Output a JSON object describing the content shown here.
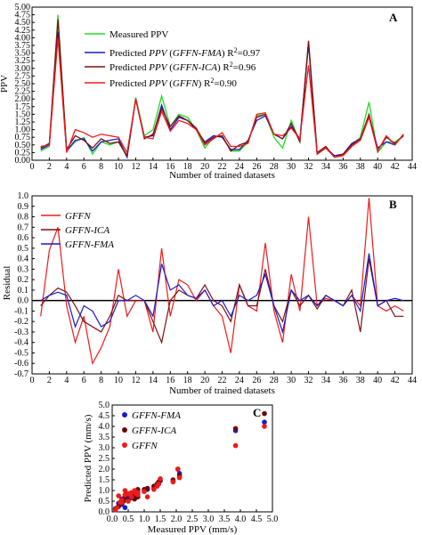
{
  "chart_data": [
    {
      "type": "line",
      "panel_label": "A",
      "xlabel": "Number of trained datasets",
      "ylabel": "PPV",
      "xlim": [
        0,
        44
      ],
      "ylim": [
        0,
        5
      ],
      "x_ticks": [
        "0",
        "2",
        "4",
        "6",
        "8",
        "10",
        "12",
        "14",
        "16",
        "18",
        "20",
        "22",
        "24",
        "26",
        "28",
        "30",
        "32",
        "34",
        "36",
        "38",
        "40",
        "42",
        "44"
      ],
      "y_ticks": [
        "0.00",
        "0.25",
        "0.50",
        "0.75",
        "1.00",
        "1.25",
        "1.50",
        "1.75",
        "2.00",
        "2.25",
        "2.50",
        "2.75",
        "3.00",
        "3.25",
        "3.50",
        "3.75",
        "4.00",
        "4.25",
        "4.50",
        "4.75",
        "5.00"
      ],
      "legend_position": "top",
      "x": [
        1,
        2,
        3,
        4,
        5,
        6,
        7,
        8,
        9,
        10,
        11,
        12,
        13,
        14,
        15,
        16,
        17,
        18,
        19,
        20,
        21,
        22,
        23,
        24,
        25,
        26,
        27,
        28,
        29,
        30,
        31,
        32,
        33,
        34,
        35,
        36,
        37,
        38,
        39,
        40,
        41,
        42,
        43
      ],
      "series": [
        {
          "name": "Measured PPV",
          "color": "#22dd22",
          "values": [
            0.3,
            0.45,
            4.75,
            0.3,
            0.6,
            0.75,
            0.2,
            0.6,
            0.5,
            0.6,
            0.1,
            2.05,
            0.8,
            1.0,
            2.1,
            1.1,
            1.5,
            1.4,
            1.0,
            0.4,
            0.75,
            0.8,
            0.3,
            0.3,
            0.6,
            1.45,
            1.5,
            0.75,
            0.4,
            1.3,
            0.6,
            3.85,
            0.2,
            0.4,
            0.1,
            0.15,
            0.5,
            0.75,
            1.9,
            0.25,
            0.6,
            0.6,
            0.8
          ]
        },
        {
          "name_prefix": "Predicted ",
          "name_ppv": "PPV",
          "name_model": "GFFN-FMA",
          "name_suffix": "R",
          "name_exp": "2",
          "name_value": "=0.97",
          "color": "#1a1acc",
          "values": [
            0.35,
            0.5,
            4.2,
            0.3,
            0.65,
            0.7,
            0.3,
            0.6,
            0.65,
            0.7,
            0.1,
            2.0,
            0.75,
            0.8,
            1.8,
            1.0,
            1.4,
            1.3,
            1.0,
            0.6,
            0.8,
            0.75,
            0.35,
            0.35,
            0.65,
            1.3,
            1.45,
            0.85,
            0.7,
            1.1,
            0.7,
            3.8,
            0.2,
            0.4,
            0.15,
            0.2,
            0.55,
            0.7,
            1.45,
            0.4,
            0.6,
            0.5,
            0.85
          ]
        },
        {
          "name_prefix": "Predicted ",
          "name_ppv": "PPV",
          "name_model": "GFFN-ICA",
          "name_suffix": "R",
          "name_exp": "2",
          "name_value": "=0.96",
          "color": "#7a1010",
          "values": [
            0.4,
            0.55,
            4.6,
            0.35,
            0.8,
            0.65,
            0.4,
            0.7,
            0.55,
            0.6,
            0.15,
            2.0,
            0.7,
            0.85,
            1.7,
            1.1,
            1.45,
            1.3,
            1.05,
            0.55,
            0.75,
            0.8,
            0.3,
            0.5,
            0.6,
            1.4,
            1.5,
            0.85,
            0.7,
            1.2,
            0.6,
            3.9,
            0.25,
            0.45,
            0.1,
            0.2,
            0.5,
            0.7,
            1.5,
            0.3,
            0.75,
            0.55,
            0.8
          ]
        },
        {
          "name_prefix": "Predicted ",
          "name_ppv": "PPV",
          "name_model": "GFFN",
          "name_suffix": "R",
          "name_exp": "2",
          "name_value": "=0.90",
          "color": "#ee1a1a",
          "values": [
            0.45,
            0.5,
            4.0,
            0.25,
            1.0,
            0.9,
            0.75,
            0.85,
            0.8,
            0.75,
            0.25,
            2.0,
            0.75,
            0.7,
            1.6,
            0.95,
            1.3,
            1.2,
            1.0,
            0.5,
            0.7,
            0.9,
            0.45,
            0.45,
            0.55,
            1.5,
            1.55,
            0.85,
            0.8,
            1.05,
            0.7,
            3.1,
            0.2,
            0.4,
            0.1,
            0.15,
            0.45,
            0.65,
            1.4,
            0.3,
            0.8,
            0.5,
            0.85
          ]
        }
      ]
    },
    {
      "type": "line",
      "panel_label": "B",
      "xlabel": "Number of trained datasets",
      "ylabel": "Residual",
      "xlim": [
        0,
        44
      ],
      "ylim": [
        -0.7,
        1.0
      ],
      "x_ticks": [
        "0",
        "2",
        "4",
        "6",
        "8",
        "10",
        "12",
        "14",
        "16",
        "18",
        "20",
        "22",
        "24",
        "26",
        "28",
        "30",
        "32",
        "34",
        "36",
        "38",
        "40",
        "42",
        "44"
      ],
      "y_ticks": [
        "-0.7",
        "-0.6",
        "-0.5",
        "-0.4",
        "-0.3",
        "-0.2",
        "-0.1",
        "0.0",
        "0.1",
        "0.2",
        "0.3",
        "0.4",
        "0.5",
        "0.6",
        "0.7",
        "0.8",
        "0.9",
        "1.0"
      ],
      "legend_position": "top-left",
      "x": [
        1,
        2,
        3,
        4,
        5,
        6,
        7,
        8,
        9,
        10,
        11,
        12,
        13,
        14,
        15,
        16,
        17,
        18,
        19,
        20,
        21,
        22,
        23,
        24,
        25,
        26,
        27,
        28,
        29,
        30,
        31,
        32,
        33,
        34,
        35,
        36,
        37,
        38,
        39,
        40,
        41,
        42,
        43
      ],
      "series": [
        {
          "name": "GFFN",
          "color": "#ee1a1a",
          "values": [
            -0.15,
            0.48,
            0.7,
            -0.05,
            -0.4,
            -0.15,
            -0.6,
            -0.45,
            -0.25,
            0.3,
            -0.15,
            0.0,
            0.0,
            -0.3,
            0.5,
            -0.15,
            0.2,
            0.15,
            0.0,
            0.1,
            -0.05,
            -0.15,
            -0.5,
            0.15,
            -0.05,
            -0.1,
            0.55,
            -0.1,
            -0.4,
            0.25,
            -0.1,
            0.8,
            -0.05,
            0.02,
            0.0,
            -0.05,
            0.05,
            -0.05,
            0.98,
            -0.05,
            -0.1,
            -0.05,
            -0.1
          ]
        },
        {
          "name": "GFFN-ICA",
          "color": "#7a1010",
          "values": [
            -0.05,
            0.05,
            0.12,
            0.08,
            -0.05,
            -0.2,
            -0.25,
            -0.3,
            -0.15,
            0.05,
            0.0,
            0.0,
            0.0,
            -0.2,
            -0.4,
            0.0,
            0.1,
            0.05,
            0.02,
            0.15,
            0.0,
            -0.05,
            -0.2,
            0.15,
            -0.05,
            -0.05,
            0.3,
            -0.05,
            -0.2,
            0.1,
            -0.05,
            0.05,
            -0.08,
            0.05,
            0.0,
            -0.05,
            0.1,
            -0.3,
            0.4,
            -0.05,
            0.0,
            -0.15,
            -0.15
          ]
        },
        {
          "name": "GFFN-FMA",
          "color": "#1a1acc",
          "values": [
            0.0,
            0.05,
            0.08,
            0.05,
            -0.25,
            -0.05,
            -0.1,
            -0.25,
            -0.2,
            0.0,
            0.0,
            0.05,
            0.0,
            -0.15,
            0.35,
            0.1,
            0.15,
            0.05,
            0.02,
            0.1,
            -0.05,
            0.0,
            -0.15,
            0.05,
            0.0,
            0.05,
            0.25,
            -0.05,
            -0.3,
            0.1,
            0.0,
            0.05,
            -0.05,
            0.05,
            0.0,
            -0.05,
            0.05,
            -0.1,
            0.45,
            -0.05,
            0.0,
            0.02,
            0.0
          ]
        }
      ]
    },
    {
      "type": "scatter",
      "panel_label": "C",
      "xlabel": "Measured PPV (mm/s)",
      "ylabel": "Predicted PPV (mm/s)",
      "xlim": [
        0,
        5.0
      ],
      "ylim": [
        0,
        5.0
      ],
      "x_ticks": [
        "0.0",
        "0.5",
        "1.0",
        "1.5",
        "2.0",
        "2.5",
        "3.0",
        "3.5",
        "4.0",
        "4.5",
        "5.0"
      ],
      "y_ticks": [
        "0.0",
        "0.5",
        "1.0",
        "1.5",
        "2.0",
        "2.5",
        "3.0",
        "3.5",
        "4.0",
        "4.5",
        "5.0"
      ],
      "legend_position": "top-left",
      "series": [
        {
          "name": "GFFN-FMA",
          "color": "#1a1acc",
          "points": [
            [
              0.1,
              0.15
            ],
            [
              0.15,
              0.2
            ],
            [
              0.2,
              0.4
            ],
            [
              0.3,
              0.35
            ],
            [
              0.3,
              0.6
            ],
            [
              0.4,
              0.7
            ],
            [
              0.4,
              0.2
            ],
            [
              0.5,
              0.6
            ],
            [
              0.5,
              0.8
            ],
            [
              0.6,
              0.65
            ],
            [
              0.6,
              0.7
            ],
            [
              0.7,
              0.8
            ],
            [
              0.75,
              0.75
            ],
            [
              0.8,
              0.75
            ],
            [
              0.8,
              1.0
            ],
            [
              1.0,
              1.0
            ],
            [
              1.1,
              1.05
            ],
            [
              1.3,
              1.1
            ],
            [
              1.4,
              1.3
            ],
            [
              1.45,
              1.3
            ],
            [
              1.5,
              1.45
            ],
            [
              1.9,
              1.45
            ],
            [
              2.05,
              2.0
            ],
            [
              2.1,
              1.8
            ],
            [
              3.85,
              3.8
            ],
            [
              4.75,
              4.2
            ]
          ]
        },
        {
          "name": "GFFN-ICA",
          "color": "#6a0a0a",
          "points": [
            [
              0.1,
              0.1
            ],
            [
              0.2,
              0.25
            ],
            [
              0.25,
              0.45
            ],
            [
              0.3,
              0.4
            ],
            [
              0.35,
              0.5
            ],
            [
              0.4,
              0.7
            ],
            [
              0.5,
              0.55
            ],
            [
              0.5,
              0.85
            ],
            [
              0.6,
              0.7
            ],
            [
              0.6,
              0.8
            ],
            [
              0.7,
              0.6
            ],
            [
              0.75,
              0.85
            ],
            [
              0.8,
              0.7
            ],
            [
              0.8,
              1.05
            ],
            [
              1.0,
              1.05
            ],
            [
              1.1,
              1.1
            ],
            [
              1.3,
              1.2
            ],
            [
              1.4,
              1.3
            ],
            [
              1.45,
              1.4
            ],
            [
              1.5,
              1.5
            ],
            [
              1.9,
              1.5
            ],
            [
              2.05,
              2.0
            ],
            [
              2.1,
              1.7
            ],
            [
              3.85,
              3.9
            ],
            [
              4.75,
              4.6
            ]
          ]
        },
        {
          "name": "GFFN",
          "color": "#ee1a1a",
          "points": [
            [
              0.1,
              0.1
            ],
            [
              0.15,
              0.2
            ],
            [
              0.2,
              0.75
            ],
            [
              0.25,
              0.45
            ],
            [
              0.3,
              0.45
            ],
            [
              0.3,
              0.55
            ],
            [
              0.4,
              0.8
            ],
            [
              0.4,
              1.0
            ],
            [
              0.5,
              0.85
            ],
            [
              0.5,
              0.5
            ],
            [
              0.6,
              0.7
            ],
            [
              0.6,
              0.9
            ],
            [
              0.7,
              1.0
            ],
            [
              0.75,
              0.85
            ],
            [
              0.8,
              0.8
            ],
            [
              0.8,
              0.9
            ],
            [
              1.0,
              0.95
            ],
            [
              1.1,
              0.7
            ],
            [
              1.3,
              1.05
            ],
            [
              1.4,
              1.2
            ],
            [
              1.45,
              1.3
            ],
            [
              1.5,
              1.55
            ],
            [
              1.9,
              1.4
            ],
            [
              2.05,
              2.0
            ],
            [
              2.1,
              1.6
            ],
            [
              3.85,
              3.1
            ],
            [
              4.75,
              4.0
            ]
          ]
        }
      ]
    }
  ]
}
